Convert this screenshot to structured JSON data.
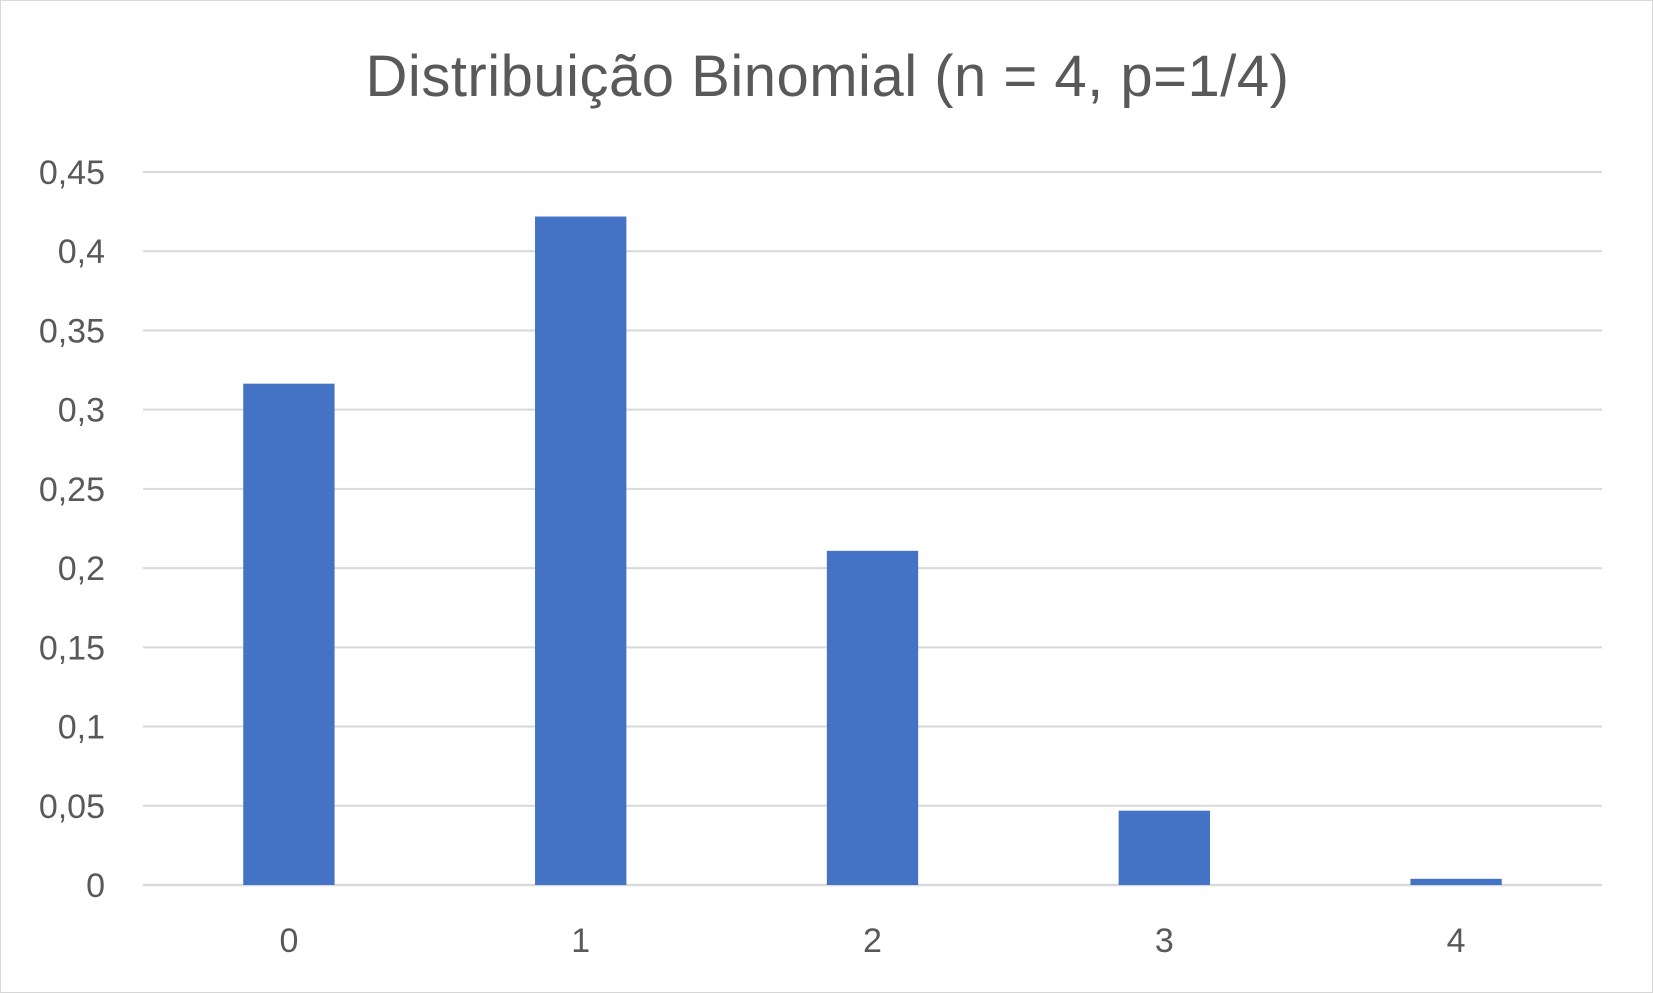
{
  "chart_data": {
    "type": "bar",
    "title": "Distribuição Binomial (n = 4, p=1/4)",
    "xlabel": "",
    "ylabel": "",
    "categories": [
      "0",
      "1",
      "2",
      "3",
      "4"
    ],
    "values": [
      0.3164,
      0.4219,
      0.2109,
      0.0469,
      0.0039
    ],
    "ylim": [
      0,
      0.45
    ],
    "yticks": [
      0,
      0.05,
      0.1,
      0.15,
      0.2,
      0.25,
      0.3,
      0.35,
      0.4,
      0.45
    ],
    "ytick_labels": [
      "0",
      "0,05",
      "0,1",
      "0,15",
      "0,2",
      "0,25",
      "0,3",
      "0,35",
      "0,4",
      "0,45"
    ],
    "grid": true,
    "legend": "none",
    "bar_color": "#4472C4",
    "grid_color": "#D9D9D9",
    "text_color": "#595959"
  }
}
